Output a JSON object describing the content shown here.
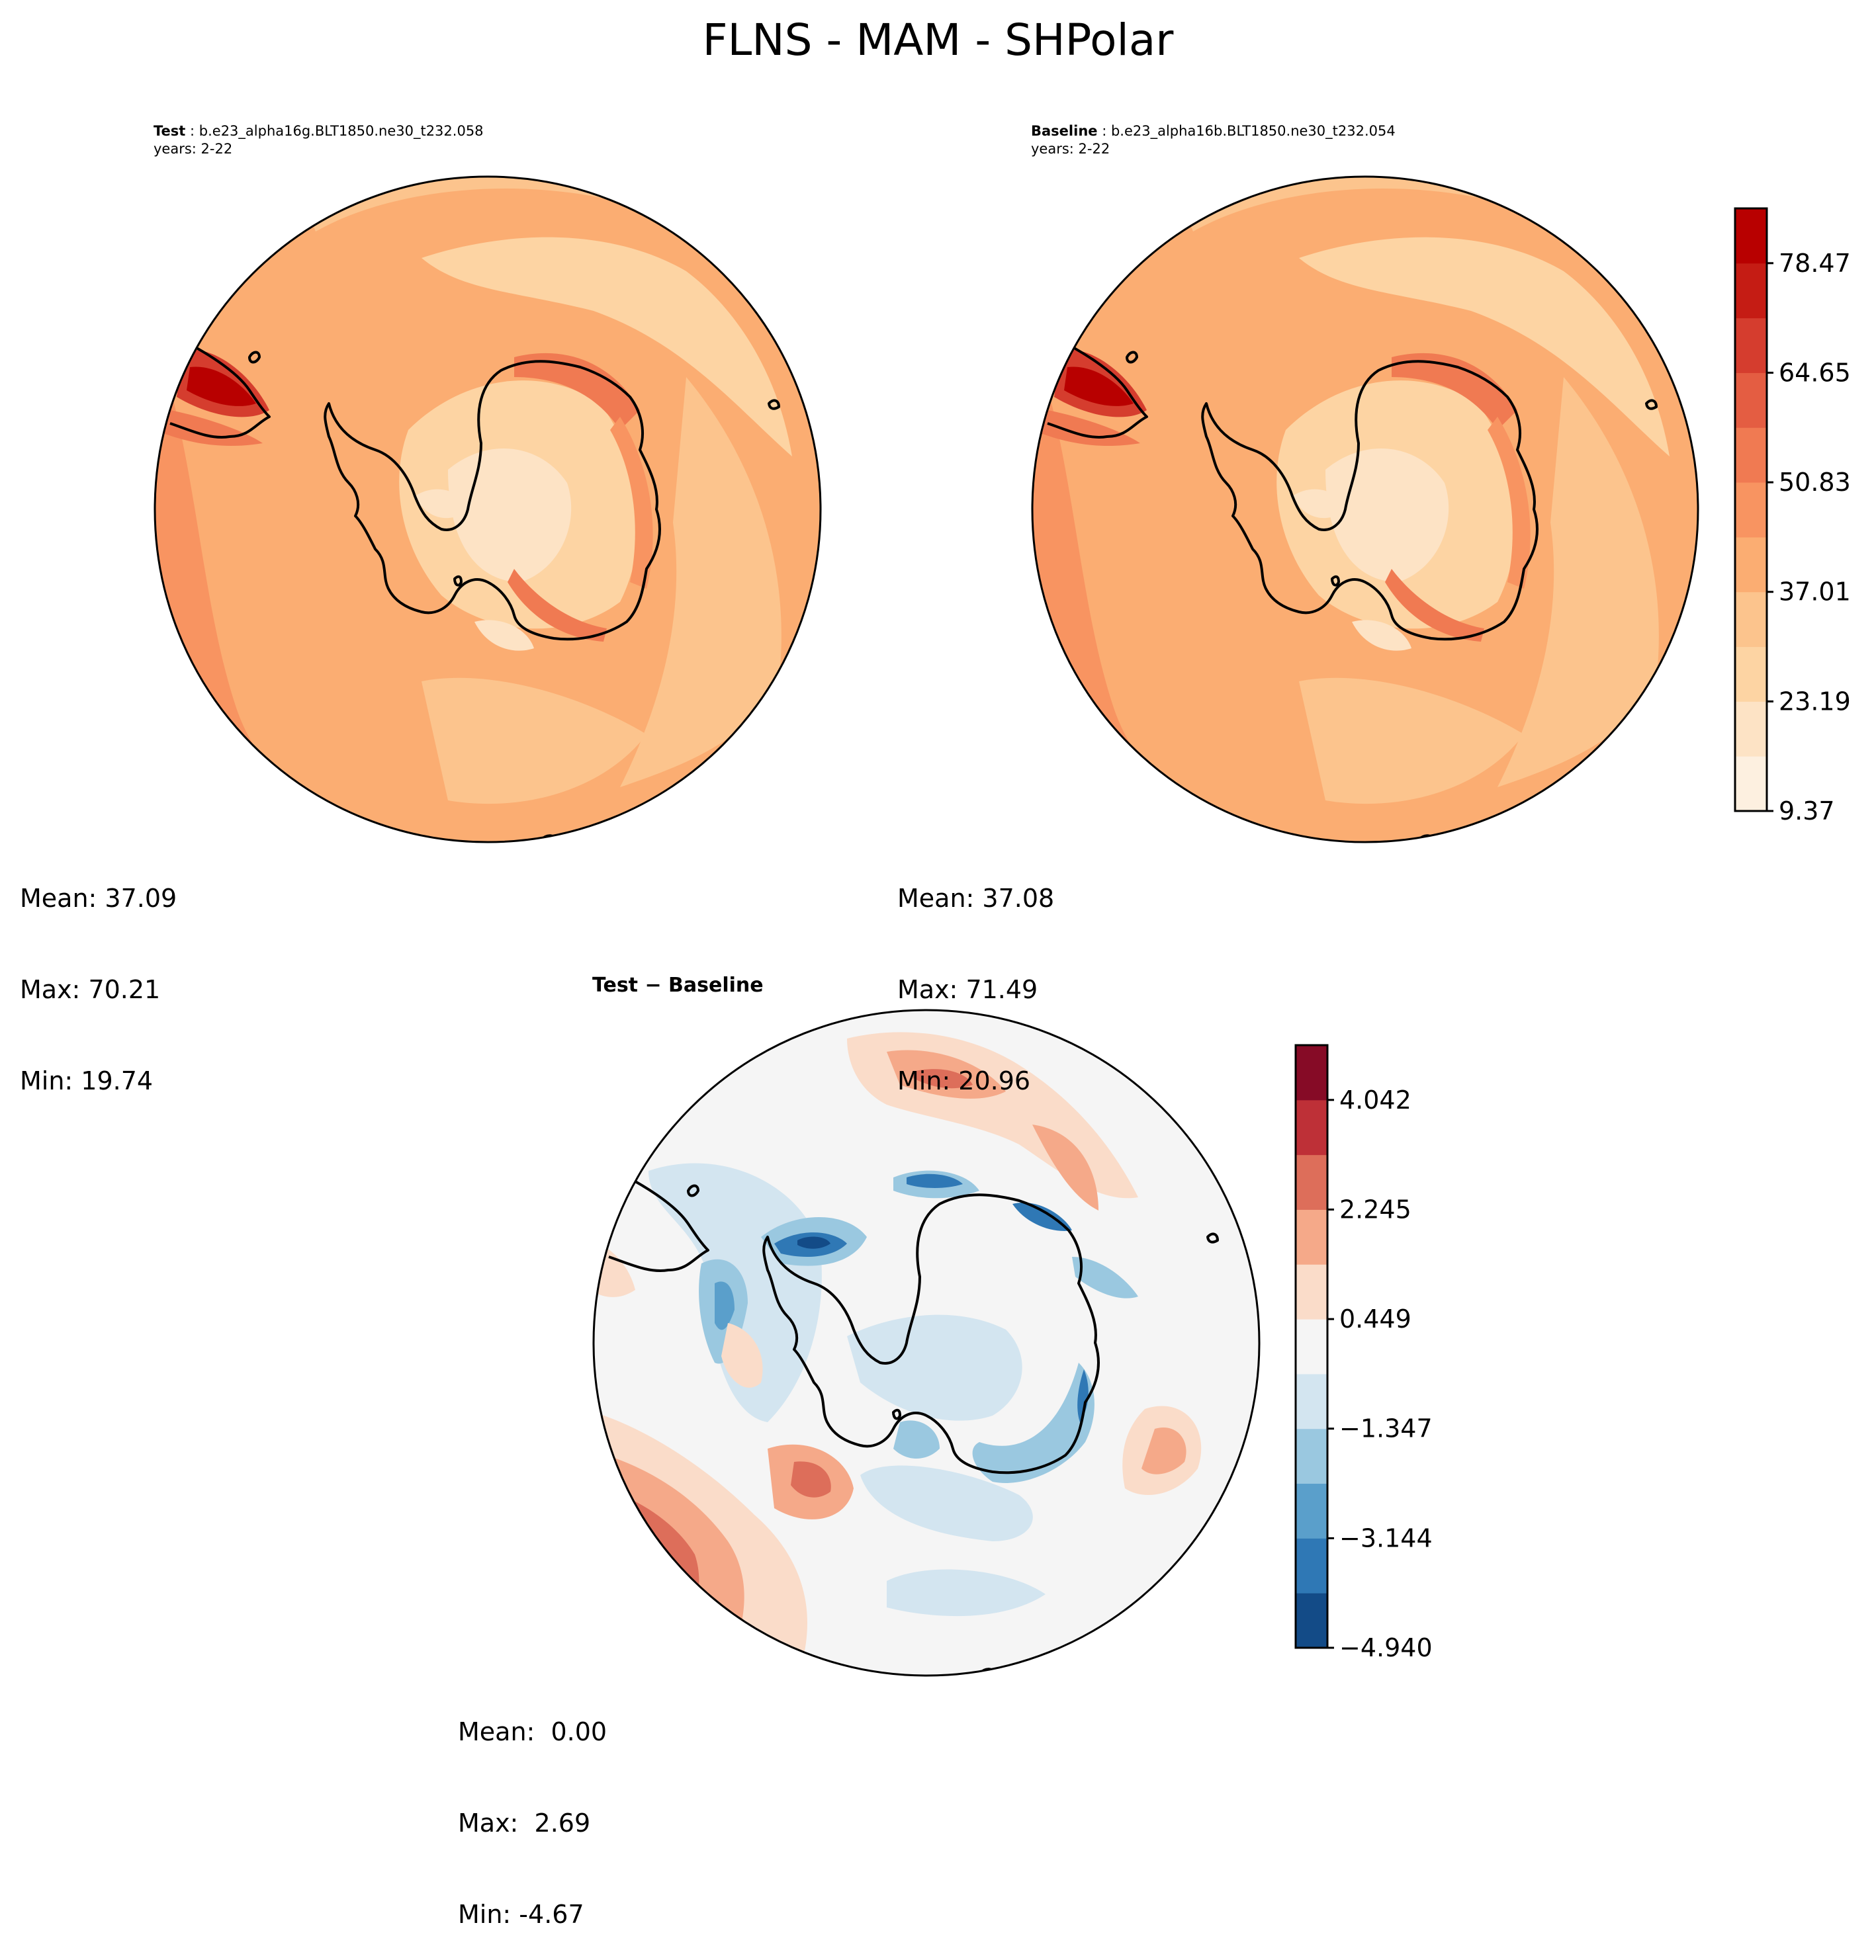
{
  "figure": {
    "title": "FLNS - MAM - SHPolar"
  },
  "panels": {
    "test": {
      "title_bold": "Test",
      "title_case": "b.e23_alpha16g.BLT1850.ne30_t232.058",
      "years": "years: 2-22",
      "stats": {
        "mean": "Mean: 37.09",
        "max": "Max: 70.21",
        "min": "Min: 19.74"
      }
    },
    "baseline": {
      "title_bold": "Baseline",
      "title_case": "b.e23_alpha16b.BLT1850.ne30_t232.054",
      "years": "years: 2-22",
      "stats": {
        "mean": "Mean: 37.08",
        "max": "Max: 71.49",
        "min": "Min: 20.96"
      }
    },
    "diff": {
      "title_bold": "Test",
      "title_rest": " − Baseline",
      "stats": {
        "mean": "Mean:  0.00",
        "max": "Max:  2.69",
        "min": "Min: -4.67"
      }
    }
  },
  "chart_data": [
    {
      "type": "heatmap",
      "name": "Test",
      "projection": "south polar stereographic",
      "colormap": "OrRd",
      "stats": {
        "mean": 37.09,
        "max": 70.21,
        "min": 19.74
      }
    },
    {
      "type": "heatmap",
      "name": "Baseline",
      "projection": "south polar stereographic",
      "colormap": "OrRd",
      "stats": {
        "mean": 37.08,
        "max": 71.49,
        "min": 20.96
      },
      "colorbar": {
        "levels": [
          9.37,
          16.28,
          23.19,
          30.1,
          37.01,
          43.92,
          50.83,
          57.74,
          64.65,
          71.56,
          78.47,
          85.38
        ],
        "tick_labels": [
          "9.37",
          "23.19",
          "37.01",
          "50.83",
          "64.65",
          "78.47"
        ],
        "colors": [
          "#fdf0e0",
          "#fde3c5",
          "#fdd4a3",
          "#fcc48d",
          "#fbad72",
          "#f89461",
          "#f07a52",
          "#e45d42",
          "#d53d2e",
          "#c51c14",
          "#b80000"
        ]
      }
    },
    {
      "type": "heatmap",
      "name": "Test − Baseline",
      "projection": "south polar stereographic",
      "colormap": "RdBu_r",
      "stats": {
        "mean": 0.0,
        "max": 2.69,
        "min": -4.67
      },
      "colorbar": {
        "levels": [
          -4.94,
          -4.042,
          -3.144,
          -2.245,
          -1.347,
          -0.449,
          0.449,
          1.347,
          2.245,
          3.144,
          4.042,
          4.94
        ],
        "tick_labels": [
          "−4.940",
          "−3.144",
          "−1.347",
          "0.449",
          "2.245",
          "4.042"
        ],
        "colors": [
          "#134b87",
          "#2f78b5",
          "#5a9fcb",
          "#9ac8e0",
          "#d3e5f0",
          "#f5f5f5",
          "#fadcc9",
          "#f5a989",
          "#dd6e5a",
          "#be3037",
          "#860b26"
        ]
      }
    }
  ]
}
